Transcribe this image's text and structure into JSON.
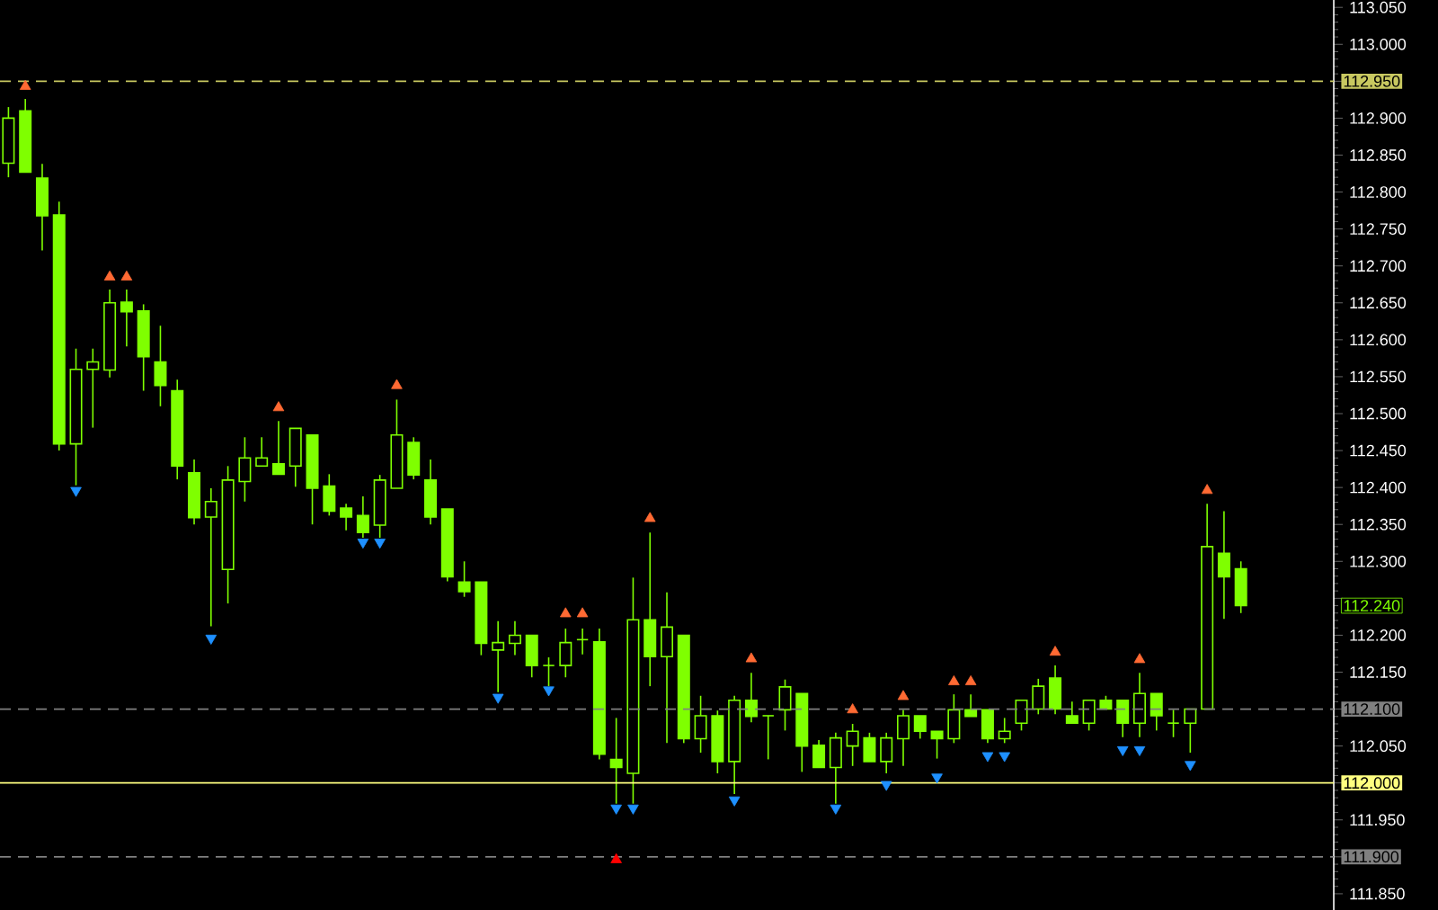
{
  "chart_data": {
    "type": "candlestick",
    "categories": [
      null,
      null,
      null,
      null,
      null,
      null,
      null,
      null,
      null,
      null,
      null,
      null,
      null,
      null,
      null,
      null,
      null,
      null,
      null,
      null,
      null,
      null,
      null,
      null,
      null,
      null,
      null,
      null,
      null,
      null,
      null,
      null,
      null,
      null,
      null,
      null,
      null,
      null,
      null,
      null,
      null,
      null,
      null,
      null,
      null,
      null,
      null,
      null,
      null,
      null,
      null,
      null,
      null,
      null,
      null,
      null,
      null,
      null,
      null,
      null,
      null,
      null,
      null,
      null,
      null,
      null,
      null,
      null,
      null,
      null,
      null,
      null,
      null,
      null,
      null,
      null,
      null,
      null,
      null
    ],
    "series": [
      {
        "type": "candlestick",
        "color": "#7fff00",
        "ohlc": [
          [
            112.839,
            112.915,
            112.82,
            112.9
          ],
          [
            112.91,
            112.926,
            112.827,
            112.827
          ],
          [
            112.819,
            112.838,
            112.721,
            112.768
          ],
          [
            112.769,
            112.787,
            112.45,
            112.459
          ],
          [
            112.459,
            112.588,
            112.403,
            112.56
          ],
          [
            112.56,
            112.588,
            112.481,
            112.57
          ],
          [
            112.559,
            112.668,
            112.549,
            112.65
          ],
          [
            112.651,
            112.668,
            112.591,
            112.638
          ],
          [
            112.639,
            112.648,
            112.531,
            112.577
          ],
          [
            112.57,
            112.619,
            112.51,
            112.538
          ],
          [
            112.531,
            112.546,
            112.411,
            112.429
          ],
          [
            112.42,
            112.438,
            112.35,
            112.359
          ],
          [
            112.36,
            112.399,
            112.212,
            112.381
          ],
          [
            112.289,
            112.429,
            112.243,
            112.41
          ],
          [
            112.408,
            112.468,
            112.381,
            112.44
          ],
          [
            112.429,
            112.468,
            112.429,
            112.44
          ],
          [
            112.432,
            112.49,
            112.418,
            112.418
          ],
          [
            112.429,
            112.48,
            112.401,
            112.48
          ],
          [
            112.471,
            112.471,
            112.35,
            112.399
          ],
          [
            112.402,
            112.418,
            112.362,
            112.368
          ],
          [
            112.372,
            112.378,
            112.342,
            112.36
          ],
          [
            112.362,
            112.388,
            112.332,
            112.339
          ],
          [
            112.349,
            112.417,
            112.332,
            112.41
          ],
          [
            112.399,
            112.519,
            112.399,
            112.471
          ],
          [
            112.461,
            112.468,
            112.411,
            112.417
          ],
          [
            112.41,
            112.438,
            112.35,
            112.36
          ],
          [
            112.371,
            112.371,
            112.273,
            112.279
          ],
          [
            112.272,
            112.3,
            112.252,
            112.259
          ],
          [
            112.272,
            112.272,
            112.173,
            112.189
          ],
          [
            112.18,
            112.219,
            112.123,
            112.19
          ],
          [
            112.189,
            112.219,
            112.173,
            112.2
          ],
          [
            112.2,
            112.2,
            112.143,
            112.159
          ],
          [
            112.159,
            112.17,
            112.131,
            112.159
          ],
          [
            112.159,
            112.209,
            112.143,
            112.19
          ],
          [
            112.194,
            112.209,
            112.174,
            112.194
          ],
          [
            112.191,
            112.209,
            112.032,
            112.039
          ],
          [
            112.032,
            112.088,
            111.972,
            112.021
          ],
          [
            112.013,
            112.278,
            111.972,
            112.221
          ],
          [
            112.221,
            112.339,
            112.131,
            112.171
          ],
          [
            112.171,
            112.258,
            112.054,
            112.211
          ],
          [
            112.2,
            112.2,
            112.054,
            112.06
          ],
          [
            112.06,
            112.118,
            112.041,
            112.091
          ],
          [
            112.091,
            112.098,
            112.013,
            112.029
          ],
          [
            112.029,
            112.118,
            111.985,
            112.112
          ],
          [
            112.112,
            112.149,
            112.082,
            112.09
          ],
          [
            112.091,
            112.091,
            112.032,
            112.091
          ],
          [
            112.099,
            112.14,
            112.071,
            112.13
          ],
          [
            112.121,
            112.121,
            112.015,
            112.05
          ],
          [
            112.051,
            112.058,
            112.021,
            112.021
          ],
          [
            112.021,
            112.068,
            111.972,
            112.061
          ],
          [
            112.05,
            112.08,
            112.023,
            112.07
          ],
          [
            112.061,
            112.068,
            112.029,
            112.029
          ],
          [
            112.029,
            112.068,
            112.013,
            112.061
          ],
          [
            112.06,
            112.099,
            112.023,
            112.091
          ],
          [
            112.091,
            112.091,
            112.06,
            112.07
          ],
          [
            112.07,
            112.07,
            112.033,
            112.06
          ],
          [
            112.06,
            112.12,
            112.054,
            112.099
          ],
          [
            112.099,
            112.12,
            112.09,
            112.09
          ],
          [
            112.099,
            112.099,
            112.054,
            112.06
          ],
          [
            112.06,
            112.088,
            112.054,
            112.07
          ],
          [
            112.081,
            112.112,
            112.071,
            112.112
          ],
          [
            112.1,
            112.141,
            112.093,
            112.131
          ],
          [
            112.142,
            112.159,
            112.093,
            112.1
          ],
          [
            112.091,
            112.11,
            112.081,
            112.081
          ],
          [
            112.081,
            112.112,
            112.071,
            112.112
          ],
          [
            112.112,
            112.118,
            112.1,
            112.1
          ],
          [
            112.112,
            112.112,
            112.062,
            112.081
          ],
          [
            112.081,
            112.149,
            112.062,
            112.121
          ],
          [
            112.121,
            112.121,
            112.071,
            112.091
          ],
          [
            112.081,
            112.099,
            112.062,
            112.081
          ],
          [
            112.081,
            112.1,
            112.041,
            112.1
          ],
          [
            112.1,
            112.378,
            112.1,
            112.32
          ],
          [
            112.311,
            112.368,
            112.222,
            112.279
          ],
          [
            112.29,
            112.3,
            112.23,
            112.24
          ],
          null,
          null,
          null,
          null,
          null
        ]
      },
      {
        "type": "scatter",
        "color": "#ff6a33",
        "marker": "triangle",
        "values": [
          null,
          112.943,
          null,
          null,
          null,
          null,
          112.685,
          112.685,
          null,
          null,
          null,
          null,
          null,
          null,
          null,
          null,
          112.508,
          null,
          null,
          null,
          null,
          null,
          null,
          112.538,
          null,
          null,
          null,
          null,
          null,
          null,
          null,
          null,
          null,
          112.229,
          112.229,
          null,
          null,
          null,
          112.358,
          null,
          null,
          null,
          null,
          null,
          112.168,
          null,
          null,
          null,
          null,
          null,
          112.099,
          null,
          null,
          112.117,
          null,
          null,
          112.137,
          112.137,
          null,
          null,
          null,
          null,
          112.177,
          null,
          null,
          null,
          null,
          112.167,
          null,
          null,
          null,
          112.396,
          null,
          null,
          null,
          null,
          null,
          null,
          null
        ]
      },
      {
        "type": "scatter",
        "color": "#1e90ff",
        "marker": "triangle-down",
        "values": [
          null,
          null,
          null,
          null,
          112.396,
          null,
          null,
          null,
          null,
          null,
          null,
          null,
          112.196,
          null,
          null,
          null,
          null,
          null,
          null,
          null,
          null,
          112.326,
          112.326,
          null,
          null,
          null,
          null,
          null,
          null,
          112.116,
          null,
          null,
          112.126,
          null,
          null,
          null,
          111.966,
          111.966,
          null,
          null,
          null,
          null,
          null,
          111.977,
          null,
          null,
          null,
          null,
          null,
          111.966,
          null,
          null,
          111.998,
          null,
          null,
          112.008,
          null,
          null,
          112.037,
          112.037,
          null,
          null,
          null,
          null,
          null,
          null,
          112.045,
          112.045,
          null,
          null,
          112.025,
          null,
          null,
          null,
          null,
          null,
          null,
          null,
          null
        ]
      },
      {
        "type": "scatter",
        "color": "#ff0000",
        "marker": "triangle",
        "values": [
          null,
          null,
          null,
          null,
          null,
          null,
          null,
          null,
          null,
          null,
          null,
          null,
          null,
          null,
          null,
          null,
          null,
          null,
          null,
          null,
          null,
          null,
          null,
          null,
          null,
          null,
          null,
          null,
          null,
          null,
          null,
          null,
          null,
          null,
          null,
          null,
          111.896,
          null,
          null,
          null,
          null,
          null,
          null,
          null,
          null,
          null,
          null,
          null,
          null,
          null,
          null,
          null,
          null,
          null,
          null,
          null,
          null,
          null,
          null,
          null,
          null,
          null,
          null,
          null,
          null,
          null,
          null,
          null,
          null,
          null,
          null,
          null,
          null,
          null,
          null,
          null,
          null,
          null,
          null
        ]
      }
    ],
    "ylim": [
      111.828,
      113.06
    ],
    "yticks": [
      {
        "value": 111.85,
        "label": "111.850"
      },
      {
        "value": 111.9,
        "label": null
      },
      {
        "value": 111.95,
        "label": "111.950"
      },
      {
        "value": 112.0,
        "label": null
      },
      {
        "value": 112.05,
        "label": "112.050"
      },
      {
        "value": 112.1,
        "label": null
      },
      {
        "value": 112.15,
        "label": "112.150"
      },
      {
        "value": 112.2,
        "label": "112.200"
      },
      {
        "value": 112.25,
        "label": null
      },
      {
        "value": 112.3,
        "label": "112.300"
      },
      {
        "value": 112.35,
        "label": "112.350"
      },
      {
        "value": 112.4,
        "label": "112.400"
      },
      {
        "value": 112.45,
        "label": "112.450"
      },
      {
        "value": 112.5,
        "label": "112.500"
      },
      {
        "value": 112.55,
        "label": "112.550"
      },
      {
        "value": 112.6,
        "label": "112.600"
      },
      {
        "value": 112.65,
        "label": "112.650"
      },
      {
        "value": 112.7,
        "label": "112.700"
      },
      {
        "value": 112.75,
        "label": "112.750"
      },
      {
        "value": 112.8,
        "label": "112.800"
      },
      {
        "value": 112.85,
        "label": "112.850"
      },
      {
        "value": 112.9,
        "label": "112.900"
      },
      {
        "value": 112.95,
        "label": null
      },
      {
        "value": 113.0,
        "label": "113.000"
      },
      {
        "value": 113.05,
        "label": "113.050"
      }
    ],
    "ref_lines": [
      {
        "axis": "y",
        "value": 112.95,
        "label": "112.950",
        "color": "#c8c860",
        "line_style": "dashed"
      },
      {
        "axis": "y",
        "value": 112.1,
        "label": "112.100",
        "color": "#808080",
        "line_style": "dashed"
      },
      {
        "axis": "y",
        "value": 112.0,
        "label": "112.000",
        "color": "#ffff80",
        "line_style": "solid"
      },
      {
        "axis": "y",
        "value": 111.9,
        "label": "111.900",
        "color": "#808080",
        "line_style": "dashed"
      }
    ],
    "annotations": [
      "112.240"
    ],
    "tick_labels": "y"
  }
}
